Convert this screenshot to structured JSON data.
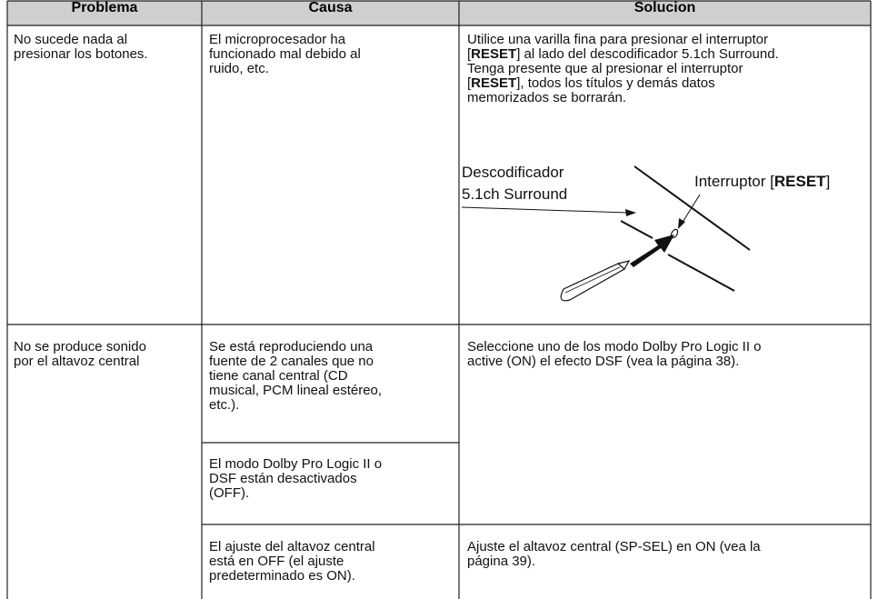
{
  "table": {
    "header": [
      "Problema",
      "Causa",
      "Solucion"
    ],
    "rows": [
      {
        "problema": [
          "No sucede nada al",
          "presionar los botones."
        ],
        "causa": [
          "El microprocesador ha",
          "funcionado mal debido al",
          "ruido, etc."
        ],
        "solucion": [
          "Utilice una varilla fina para presionar el interruptor",
          [
            "[",
            "RESET",
            "] al lado del descodificador 5.1ch Surround."
          ],
          "Tenga presente que al presionar el interruptor",
          [
            "[",
            "RESET",
            "], todos los títulos y demás datos"
          ],
          "memorizados se borrarán."
        ],
        "diagram": {
          "decoder": [
            "Descodificador",
            "5.1ch Surround"
          ],
          "switch": [
            "Interruptor [",
            "RESET",
            "]"
          ]
        }
      },
      {
        "problema": [
          "No se produce sonido",
          "por el altavoz central"
        ],
        "causas": [
          [
            "Se está reproduciendo una",
            "fuente de 2 canales que no",
            "tiene canal central (CD",
            "musical, PCM lineal estéreo,",
            "etc.)."
          ],
          [
            "El modo Dolby Pro Logic II o",
            "DSF están desactivados",
            "(OFF)."
          ],
          [
            "El ajuste del altavoz central",
            "está en OFF (el ajuste",
            "predeterminado es ON)."
          ]
        ],
        "soluciones": [
          [
            "Seleccione uno de los modo Dolby Pro Logic II o",
            "active (ON) el efecto DSF (vea la página 38)."
          ],
          [
            "Ajuste el altavoz central (SP-SEL) en ON (vea la",
            "página 39)."
          ]
        ]
      }
    ]
  }
}
